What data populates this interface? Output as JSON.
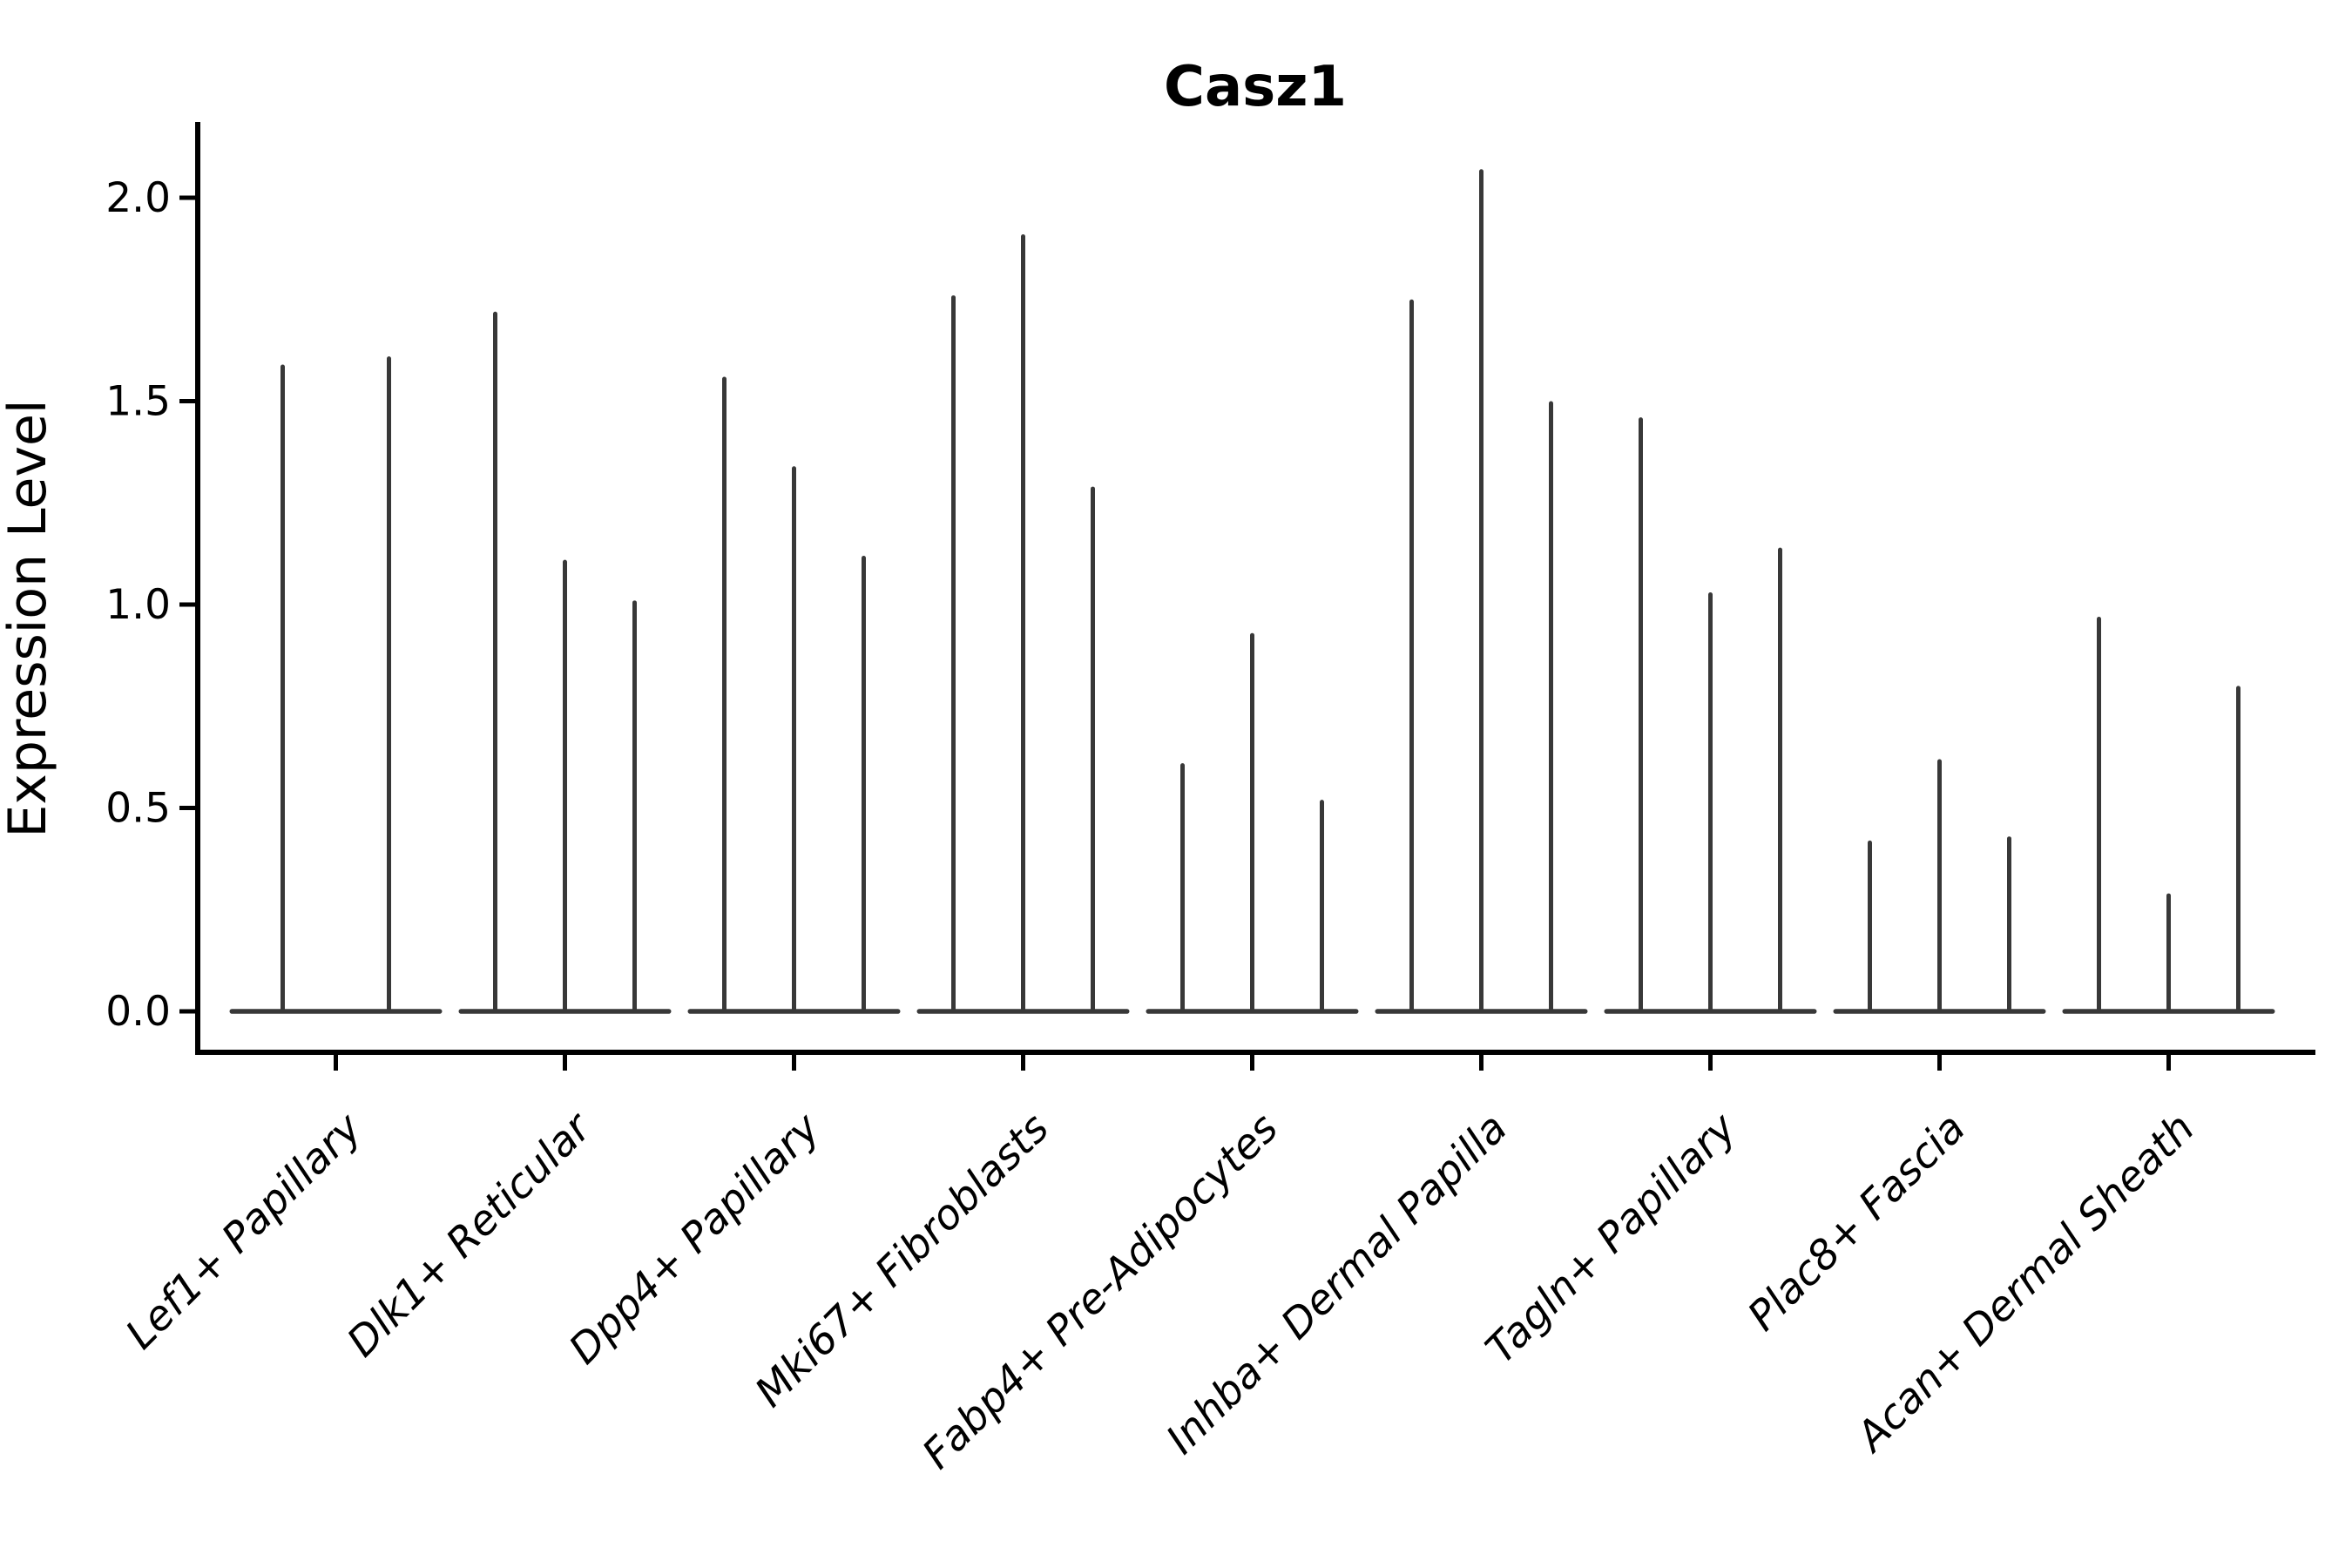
{
  "chart_data": {
    "type": "violin",
    "title": "Casz1",
    "xlabel": "",
    "ylabel": "Expression Level",
    "grid": false,
    "legend": "none",
    "ylim": [
      -0.1,
      2.19
    ],
    "y_ticks": [
      {
        "value": 0.0,
        "label": "0.0"
      },
      {
        "value": 0.5,
        "label": "0.5"
      },
      {
        "value": 1.0,
        "label": "1.0"
      },
      {
        "value": 1.5,
        "label": "1.5"
      },
      {
        "value": 2.0,
        "label": "2.0"
      }
    ],
    "x_tick_rotation_deg": 45,
    "categories": [
      "Lef1+ Papillary",
      "Dlk1+ Reticular",
      "Dpp4+ Papillary",
      "Mki67+ Fibroblasts",
      "Fabp4+ Pre-Adipocytes",
      "Inhba+ Dermal Papilla",
      "Tagln+ Papillary",
      "Plac8+ Fascia",
      "Acan+ Dermal Sheath"
    ],
    "series": [
      {
        "category": "Lef1+ Papillary",
        "violin_peaks": [
          1.59,
          1.61
        ]
      },
      {
        "category": "Dlk1+ Reticular",
        "violin_peaks": [
          1.72,
          1.11,
          1.01
        ]
      },
      {
        "category": "Dpp4+ Papillary",
        "violin_peaks": [
          1.56,
          1.34,
          1.12
        ]
      },
      {
        "category": "Mki67+ Fibroblasts",
        "violin_peaks": [
          1.76,
          1.91,
          1.29
        ]
      },
      {
        "category": "Fabp4+ Pre-Adipocytes",
        "violin_peaks": [
          0.61,
          0.93,
          0.52
        ]
      },
      {
        "category": "Inhba+ Dermal Papilla",
        "violin_peaks": [
          1.75,
          2.07,
          1.5
        ]
      },
      {
        "category": "Tagln+ Papillary",
        "violin_peaks": [
          1.46,
          1.03,
          1.14
        ]
      },
      {
        "category": "Plac8+ Fascia",
        "violin_peaks": [
          0.42,
          0.62,
          0.43
        ]
      },
      {
        "category": "Acan+ Dermal Sheath",
        "violin_peaks": [
          0.97,
          0.29,
          0.8
        ]
      }
    ]
  },
  "colors": {
    "violin": "#383838",
    "axis": "#000000",
    "text": "#000000",
    "background": "#ffffff"
  }
}
